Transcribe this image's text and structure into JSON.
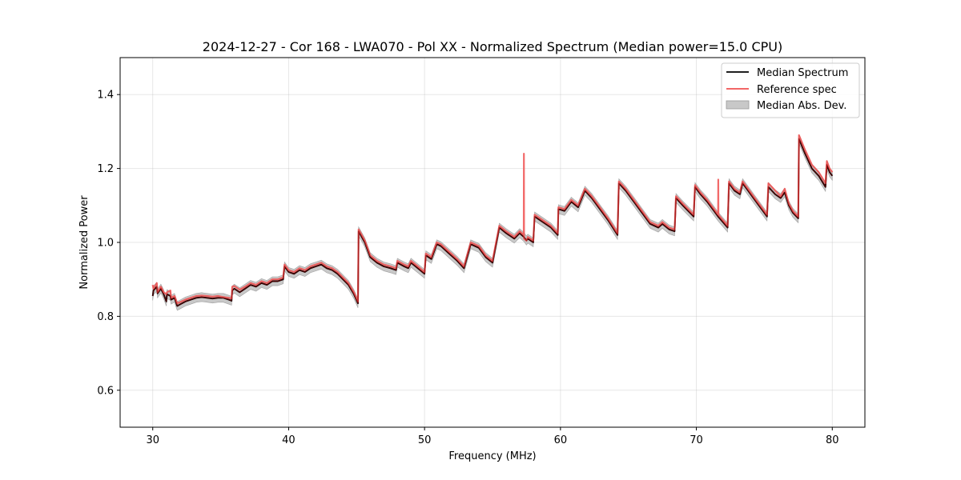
{
  "chart_data": {
    "type": "line",
    "title": "2024-12-27 - Cor 168 - LWA070 - Pol XX - Normalized Spectrum (Median power=15.0 CPU)",
    "xlabel": "Frequency (MHz)",
    "ylabel": "Normalized Power",
    "xlim": [
      27.6,
      82.4
    ],
    "ylim": [
      0.5,
      1.5
    ],
    "xticks": [
      30,
      40,
      50,
      60,
      70,
      80
    ],
    "xtick_labels": [
      "30",
      "40",
      "50",
      "60",
      "70",
      "80"
    ],
    "yticks": [
      0.6,
      0.8,
      1.0,
      1.2,
      1.4
    ],
    "ytick_labels": [
      "0.6",
      "0.8",
      "1.0",
      "1.2",
      "1.4"
    ],
    "grid": true,
    "legend_position": "top-right",
    "legend": [
      "Median Spectrum",
      "Reference spec",
      "Median Abs. Dev."
    ],
    "colors": {
      "median": "#000000",
      "reference": "#f05050",
      "mad": "#b0b0b0",
      "overlap": "#8b0000"
    },
    "mad_half_width": 0.012,
    "series": [
      {
        "name": "Median Spectrum",
        "x": [
          30.0,
          30.05,
          30.3,
          30.35,
          30.6,
          30.8,
          31.0,
          31.05,
          31.3,
          31.35,
          31.6,
          31.8,
          32.0,
          32.4,
          32.8,
          33.2,
          33.6,
          34.0,
          34.4,
          34.8,
          35.2,
          35.6,
          35.8,
          35.85,
          36.0,
          36.4,
          36.8,
          37.2,
          37.6,
          38.0,
          38.4,
          38.8,
          39.2,
          39.6,
          39.7,
          40.0,
          40.4,
          40.8,
          41.2,
          41.6,
          42.0,
          42.4,
          42.8,
          43.2,
          43.6,
          44.0,
          44.4,
          44.8,
          45.1,
          45.15,
          45.6,
          46.0,
          46.5,
          47.0,
          47.5,
          47.9,
          48.0,
          48.5,
          48.8,
          49.0,
          49.5,
          50.0,
          50.1,
          50.5,
          50.9,
          51.2,
          51.8,
          52.4,
          52.9,
          53.4,
          54.0,
          54.5,
          55.0,
          55.5,
          56.0,
          56.6,
          57.0,
          57.3,
          57.5,
          57.6,
          58.0,
          58.1,
          58.7,
          59.3,
          59.8,
          59.85,
          60.3,
          60.8,
          61.3,
          61.8,
          62.3,
          62.9,
          63.5,
          64.2,
          64.3,
          64.8,
          65.4,
          66.0,
          66.6,
          67.2,
          67.5,
          68.0,
          68.4,
          68.5,
          69.0,
          69.8,
          69.9,
          70.3,
          70.8,
          71.3,
          71.6,
          72.3,
          72.4,
          72.8,
          73.2,
          73.4,
          73.8,
          74.2,
          74.6,
          75.0,
          75.2,
          75.3,
          75.8,
          76.2,
          76.5,
          76.8,
          77.1,
          77.5,
          77.55,
          78.0,
          78.5,
          79.0,
          79.5,
          79.6,
          79.8,
          80.0
        ],
        "values": [
          0.855,
          0.87,
          0.88,
          0.862,
          0.875,
          0.86,
          0.84,
          0.86,
          0.855,
          0.845,
          0.85,
          0.828,
          0.832,
          0.84,
          0.845,
          0.85,
          0.852,
          0.85,
          0.848,
          0.85,
          0.85,
          0.845,
          0.842,
          0.87,
          0.875,
          0.865,
          0.875,
          0.885,
          0.88,
          0.89,
          0.885,
          0.895,
          0.895,
          0.9,
          0.935,
          0.92,
          0.915,
          0.925,
          0.92,
          0.93,
          0.935,
          0.94,
          0.93,
          0.925,
          0.915,
          0.9,
          0.885,
          0.86,
          0.835,
          1.03,
          1.0,
          0.96,
          0.945,
          0.935,
          0.93,
          0.925,
          0.945,
          0.935,
          0.93,
          0.945,
          0.93,
          0.915,
          0.965,
          0.955,
          0.995,
          0.99,
          0.97,
          0.95,
          0.93,
          0.995,
          0.985,
          0.96,
          0.945,
          1.04,
          1.025,
          1.01,
          1.025,
          1.015,
          1.005,
          1.01,
          1.0,
          1.07,
          1.055,
          1.04,
          1.02,
          1.09,
          1.085,
          1.11,
          1.095,
          1.14,
          1.12,
          1.09,
          1.06,
          1.02,
          1.16,
          1.14,
          1.11,
          1.08,
          1.05,
          1.04,
          1.05,
          1.035,
          1.03,
          1.12,
          1.1,
          1.07,
          1.15,
          1.13,
          1.11,
          1.085,
          1.07,
          1.04,
          1.16,
          1.14,
          1.13,
          1.16,
          1.14,
          1.12,
          1.1,
          1.08,
          1.07,
          1.15,
          1.13,
          1.12,
          1.135,
          1.1,
          1.08,
          1.065,
          1.28,
          1.24,
          1.2,
          1.18,
          1.15,
          1.21,
          1.19,
          1.18
        ]
      },
      {
        "name": "Reference spec",
        "x": [
          30.0,
          30.05,
          30.3,
          30.35,
          30.6,
          30.8,
          31.0,
          31.05,
          31.3,
          31.35,
          31.6,
          31.8,
          32.0,
          32.4,
          32.8,
          33.2,
          33.6,
          34.0,
          34.4,
          34.8,
          35.2,
          35.6,
          35.8,
          35.85,
          36.0,
          36.4,
          36.8,
          37.2,
          37.6,
          38.0,
          38.4,
          38.8,
          39.2,
          39.6,
          39.7,
          40.0,
          40.4,
          40.8,
          41.2,
          41.6,
          42.0,
          42.4,
          42.8,
          43.2,
          43.6,
          44.0,
          44.4,
          44.8,
          45.1,
          45.15,
          45.6,
          46.0,
          46.5,
          47.0,
          47.5,
          47.9,
          48.0,
          48.5,
          48.8,
          49.0,
          49.5,
          50.0,
          50.1,
          50.5,
          50.9,
          51.2,
          51.8,
          52.4,
          52.9,
          53.4,
          54.0,
          54.5,
          55.0,
          55.5,
          56.0,
          56.6,
          57.0,
          57.3,
          57.31,
          57.32,
          57.5,
          57.6,
          58.0,
          58.1,
          58.7,
          59.3,
          59.8,
          59.85,
          60.3,
          60.8,
          61.3,
          61.8,
          62.3,
          62.9,
          63.5,
          64.2,
          64.3,
          64.8,
          65.4,
          66.0,
          66.6,
          67.2,
          67.5,
          68.0,
          68.4,
          68.5,
          69.0,
          69.8,
          69.9,
          70.3,
          70.8,
          71.3,
          71.6,
          71.61,
          71.62,
          72.3,
          72.4,
          72.8,
          73.2,
          73.4,
          73.8,
          74.2,
          74.6,
          75.0,
          75.2,
          75.3,
          75.8,
          76.2,
          76.5,
          76.8,
          77.1,
          77.5,
          77.55,
          78.0,
          78.5,
          79.0,
          79.5,
          79.6,
          79.8,
          80.0
        ],
        "values": [
          0.885,
          0.875,
          0.89,
          0.865,
          0.88,
          0.865,
          0.86,
          0.865,
          0.87,
          0.85,
          0.855,
          0.835,
          0.838,
          0.845,
          0.85,
          0.855,
          0.856,
          0.855,
          0.853,
          0.855,
          0.852,
          0.85,
          0.848,
          0.88,
          0.882,
          0.872,
          0.88,
          0.89,
          0.885,
          0.895,
          0.89,
          0.9,
          0.9,
          0.905,
          0.94,
          0.925,
          0.92,
          0.93,
          0.925,
          0.935,
          0.94,
          0.945,
          0.935,
          0.93,
          0.92,
          0.905,
          0.89,
          0.865,
          0.84,
          1.035,
          1.005,
          0.965,
          0.95,
          0.94,
          0.935,
          0.93,
          0.95,
          0.94,
          0.935,
          0.95,
          0.935,
          0.92,
          0.97,
          0.96,
          1.0,
          0.995,
          0.975,
          0.955,
          0.935,
          1.0,
          0.99,
          0.965,
          0.95,
          1.045,
          1.03,
          1.015,
          1.03,
          1.02,
          1.24,
          1.01,
          1.005,
          1.015,
          1.005,
          1.075,
          1.06,
          1.045,
          1.025,
          1.095,
          1.09,
          1.115,
          1.1,
          1.145,
          1.125,
          1.095,
          1.065,
          1.025,
          1.165,
          1.145,
          1.115,
          1.085,
          1.055,
          1.045,
          1.055,
          1.04,
          1.035,
          1.125,
          1.105,
          1.075,
          1.155,
          1.135,
          1.115,
          1.09,
          1.075,
          1.17,
          1.075,
          1.045,
          1.165,
          1.145,
          1.135,
          1.165,
          1.145,
          1.125,
          1.105,
          1.085,
          1.075,
          1.16,
          1.14,
          1.125,
          1.145,
          1.105,
          1.085,
          1.07,
          1.29,
          1.25,
          1.21,
          1.19,
          1.16,
          1.22,
          1.2,
          1.19
        ]
      }
    ]
  }
}
